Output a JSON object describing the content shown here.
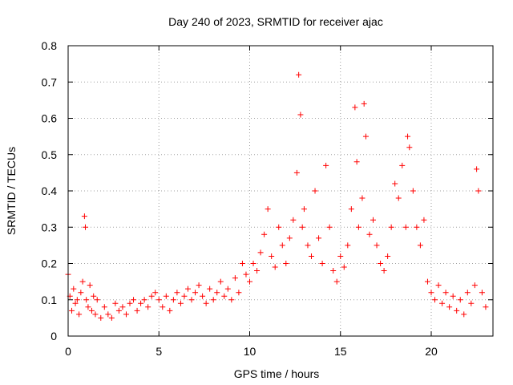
{
  "chart_data": {
    "type": "scatter",
    "title": "Day 240 of 2023, SRMTID for receiver ajac",
    "xlabel": "GPS time / hours",
    "ylabel": "SRMTID / TECUs",
    "xlim": [
      0,
      23.4
    ],
    "ylim": [
      0,
      0.8
    ],
    "xticks": [
      0,
      5,
      10,
      15,
      20
    ],
    "xtick_labels": [
      "0",
      "5",
      "10",
      "15",
      "20"
    ],
    "yticks": [
      0,
      0.1,
      0.2,
      0.3,
      0.4,
      0.5,
      0.6,
      0.7,
      0.8
    ],
    "ytick_labels": [
      "0",
      "0.1",
      "0.2",
      "0.3",
      "0.4",
      "0.5",
      "0.6",
      "0.7",
      "0.8"
    ],
    "grid": true,
    "marker": "+",
    "color": "#ff0000",
    "series": [
      {
        "name": "SRMTID",
        "x": [
          0.0,
          0.1,
          0.2,
          0.3,
          0.4,
          0.5,
          0.6,
          0.7,
          0.8,
          0.9,
          0.95,
          1.0,
          1.1,
          1.2,
          1.3,
          1.4,
          1.5,
          1.6,
          1.8,
          2.0,
          2.2,
          2.4,
          2.6,
          2.8,
          3.0,
          3.2,
          3.4,
          3.6,
          3.8,
          4.0,
          4.2,
          4.4,
          4.6,
          4.8,
          5.0,
          5.2,
          5.4,
          5.6,
          5.8,
          6.0,
          6.2,
          6.4,
          6.6,
          6.8,
          7.0,
          7.2,
          7.4,
          7.6,
          7.8,
          8.0,
          8.2,
          8.4,
          8.6,
          8.8,
          9.0,
          9.2,
          9.4,
          9.6,
          9.8,
          10.0,
          10.2,
          10.4,
          10.6,
          10.8,
          11.0,
          11.2,
          11.4,
          11.6,
          11.8,
          12.0,
          12.2,
          12.4,
          12.6,
          12.7,
          12.8,
          12.9,
          13.0,
          13.2,
          13.4,
          13.6,
          13.8,
          14.0,
          14.2,
          14.4,
          14.6,
          14.8,
          15.0,
          15.2,
          15.4,
          15.6,
          15.8,
          15.9,
          16.0,
          16.2,
          16.3,
          16.4,
          16.6,
          16.8,
          17.0,
          17.2,
          17.4,
          17.6,
          17.8,
          18.0,
          18.2,
          18.4,
          18.6,
          18.7,
          18.8,
          19.0,
          19.2,
          19.4,
          19.6,
          19.8,
          20.0,
          20.2,
          20.4,
          20.6,
          20.8,
          21.0,
          21.2,
          21.4,
          21.6,
          21.8,
          22.0,
          22.2,
          22.4,
          22.5,
          22.6,
          22.8,
          23.0
        ],
        "y": [
          0.17,
          0.11,
          0.07,
          0.13,
          0.09,
          0.1,
          0.06,
          0.12,
          0.15,
          0.33,
          0.3,
          0.1,
          0.08,
          0.14,
          0.07,
          0.11,
          0.06,
          0.1,
          0.05,
          0.08,
          0.06,
          0.05,
          0.09,
          0.07,
          0.08,
          0.06,
          0.09,
          0.1,
          0.07,
          0.09,
          0.1,
          0.08,
          0.11,
          0.12,
          0.1,
          0.08,
          0.11,
          0.07,
          0.1,
          0.12,
          0.09,
          0.11,
          0.13,
          0.1,
          0.12,
          0.14,
          0.11,
          0.09,
          0.13,
          0.1,
          0.12,
          0.15,
          0.11,
          0.13,
          0.1,
          0.16,
          0.12,
          0.2,
          0.17,
          0.15,
          0.2,
          0.18,
          0.23,
          0.28,
          0.35,
          0.22,
          0.19,
          0.3,
          0.25,
          0.2,
          0.27,
          0.32,
          0.45,
          0.72,
          0.61,
          0.3,
          0.35,
          0.25,
          0.22,
          0.4,
          0.27,
          0.2,
          0.47,
          0.3,
          0.18,
          0.15,
          0.22,
          0.19,
          0.25,
          0.35,
          0.63,
          0.48,
          0.3,
          0.38,
          0.64,
          0.55,
          0.28,
          0.32,
          0.25,
          0.2,
          0.18,
          0.22,
          0.3,
          0.42,
          0.38,
          0.47,
          0.3,
          0.55,
          0.52,
          0.4,
          0.3,
          0.25,
          0.32,
          0.15,
          0.12,
          0.1,
          0.14,
          0.09,
          0.12,
          0.08,
          0.11,
          0.07,
          0.1,
          0.06,
          0.12,
          0.09,
          0.14,
          0.46,
          0.4,
          0.12,
          0.08
        ]
      }
    ]
  }
}
